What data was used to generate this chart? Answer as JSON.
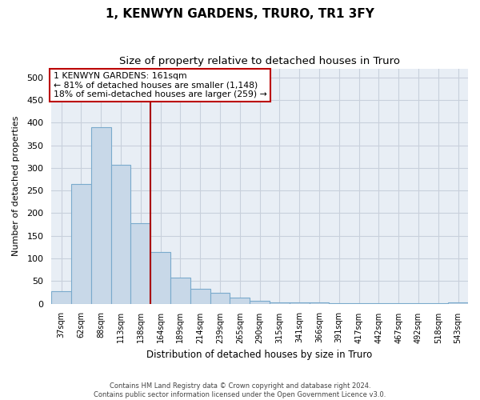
{
  "title": "1, KENWYN GARDENS, TRURO, TR1 3FY",
  "subtitle": "Size of property relative to detached houses in Truro",
  "xlabel": "Distribution of detached houses by size in Truro",
  "ylabel": "Number of detached properties",
  "bar_values": [
    28,
    265,
    390,
    307,
    178,
    115,
    58,
    32,
    24,
    14,
    7,
    2,
    2,
    2,
    1,
    1,
    1,
    1,
    1,
    1,
    3
  ],
  "categories": [
    "37sqm",
    "62sqm",
    "88sqm",
    "113sqm",
    "138sqm",
    "164sqm",
    "189sqm",
    "214sqm",
    "239sqm",
    "265sqm",
    "290sqm",
    "315sqm",
    "341sqm",
    "366sqm",
    "391sqm",
    "417sqm",
    "442sqm",
    "467sqm",
    "492sqm",
    "518sqm",
    "543sqm"
  ],
  "bar_color": "#c8d8e8",
  "bar_edge_color": "#7aaacc",
  "vline_x": 4.5,
  "vline_color": "#aa0000",
  "ylim": [
    0,
    520
  ],
  "yticks": [
    0,
    50,
    100,
    150,
    200,
    250,
    300,
    350,
    400,
    450,
    500
  ],
  "annotation_text": "1 KENWYN GARDENS: 161sqm\n← 81% of detached houses are smaller (1,148)\n18% of semi-detached houses are larger (259) →",
  "annotation_box_color": "#ffffff",
  "annotation_border_color": "#bb0000",
  "footer_text": "Contains HM Land Registry data © Crown copyright and database right 2024.\nContains public sector information licensed under the Open Government Licence v3.0.",
  "bg_color": "#e8eef5",
  "title_fontsize": 11,
  "subtitle_fontsize": 9.5
}
